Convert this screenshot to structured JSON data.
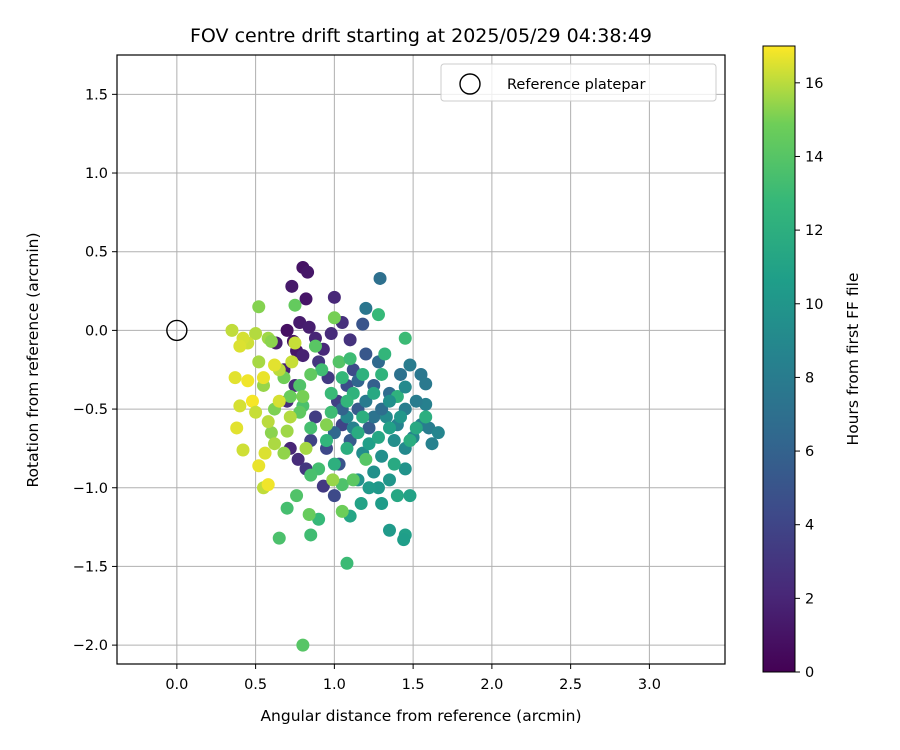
{
  "chart_data": {
    "type": "scatter",
    "title": "FOV centre drift starting at 2025/05/29 04:38:49",
    "xlabel": "Angular distance from reference (arcmin)",
    "ylabel": "Rotation from reference (arcmin)",
    "xlim": [
      -0.38,
      3.48
    ],
    "ylim": [
      -2.12,
      1.75
    ],
    "xticks": [
      0.0,
      0.5,
      1.0,
      1.5,
      2.0,
      2.5,
      3.0
    ],
    "yticks": [
      -2.0,
      -1.5,
      -1.0,
      -0.5,
      0.0,
      0.5,
      1.0,
      1.5
    ],
    "xtick_labels": [
      "0.0",
      "0.5",
      "1.0",
      "1.5",
      "2.0",
      "2.5",
      "3.0"
    ],
    "ytick_labels": [
      "−2.0",
      "−1.5",
      "−1.0",
      "−0.5",
      "0.0",
      "0.5",
      "1.0",
      "1.5"
    ],
    "grid": true,
    "legend": {
      "placement": "top-right",
      "entries": [
        "Reference platepar"
      ]
    },
    "reference_point": {
      "x": 0.0,
      "y": 0.0,
      "label": "Reference platepar"
    },
    "colorbar": {
      "label": "Hours from first FF file",
      "range": [
        0,
        17
      ],
      "ticks": [
        0,
        2,
        4,
        6,
        8,
        10,
        12,
        14,
        16
      ],
      "tick_labels": [
        "0",
        "2",
        "4",
        "6",
        "8",
        "10",
        "12",
        "14",
        "16"
      ],
      "colormap": "viridis"
    },
    "points": [
      {
        "x": 0.8,
        "y": 0.4,
        "h": 1.0
      },
      {
        "x": 0.83,
        "y": 0.37,
        "h": 1.2
      },
      {
        "x": 0.73,
        "y": 0.28,
        "h": 1.3
      },
      {
        "x": 0.82,
        "y": 0.2,
        "h": 1.1
      },
      {
        "x": 0.7,
        "y": 0.0,
        "h": 0.8
      },
      {
        "x": 0.78,
        "y": 0.05,
        "h": 1.4
      },
      {
        "x": 0.84,
        "y": 0.02,
        "h": 1.6
      },
      {
        "x": 0.74,
        "y": -0.07,
        "h": 0.9
      },
      {
        "x": 0.76,
        "y": -0.13,
        "h": 1.2
      },
      {
        "x": 0.8,
        "y": -0.16,
        "h": 1.8
      },
      {
        "x": 0.63,
        "y": -0.08,
        "h": 1.5
      },
      {
        "x": 0.88,
        "y": -0.05,
        "h": 2.0
      },
      {
        "x": 0.93,
        "y": -0.12,
        "h": 2.2
      },
      {
        "x": 0.98,
        "y": -0.02,
        "h": 2.4
      },
      {
        "x": 1.0,
        "y": 0.21,
        "h": 2.1
      },
      {
        "x": 1.05,
        "y": 0.05,
        "h": 2.6
      },
      {
        "x": 1.1,
        "y": -0.06,
        "h": 2.8
      },
      {
        "x": 0.68,
        "y": -0.25,
        "h": 1.7
      },
      {
        "x": 0.75,
        "y": -0.35,
        "h": 2.3
      },
      {
        "x": 0.7,
        "y": -0.45,
        "h": 2.5
      },
      {
        "x": 0.77,
        "y": -0.82,
        "h": 2.4
      },
      {
        "x": 0.72,
        "y": -0.75,
        "h": 2.0
      },
      {
        "x": 0.93,
        "y": -0.99,
        "h": 3.2
      },
      {
        "x": 0.82,
        "y": -0.88,
        "h": 3.0
      },
      {
        "x": 0.9,
        "y": -0.2,
        "h": 3.0
      },
      {
        "x": 0.96,
        "y": -0.3,
        "h": 3.3
      },
      {
        "x": 0.88,
        "y": -0.55,
        "h": 3.5
      },
      {
        "x": 1.02,
        "y": -0.45,
        "h": 3.6
      },
      {
        "x": 0.85,
        "y": -0.7,
        "h": 3.8
      },
      {
        "x": 1.05,
        "y": -0.6,
        "h": 4.0
      },
      {
        "x": 0.95,
        "y": -0.75,
        "h": 4.2
      },
      {
        "x": 1.0,
        "y": -1.05,
        "h": 4.3
      },
      {
        "x": 1.12,
        "y": -0.25,
        "h": 4.4
      },
      {
        "x": 1.08,
        "y": -0.35,
        "h": 4.5
      },
      {
        "x": 1.18,
        "y": 0.04,
        "h": 5.0
      },
      {
        "x": 1.2,
        "y": -0.15,
        "h": 5.2
      },
      {
        "x": 1.15,
        "y": -0.5,
        "h": 5.4
      },
      {
        "x": 1.22,
        "y": -0.62,
        "h": 5.6
      },
      {
        "x": 1.25,
        "y": -0.35,
        "h": 5.8
      },
      {
        "x": 1.1,
        "y": -0.7,
        "h": 5.5
      },
      {
        "x": 1.03,
        "y": -0.85,
        "h": 5.0
      },
      {
        "x": 1.29,
        "y": 0.33,
        "h": 7.0
      },
      {
        "x": 1.2,
        "y": 0.14,
        "h": 7.5
      },
      {
        "x": 1.28,
        "y": -0.2,
        "h": 6.5
      },
      {
        "x": 1.35,
        "y": -0.4,
        "h": 6.8
      },
      {
        "x": 1.42,
        "y": -0.28,
        "h": 7.2
      },
      {
        "x": 1.55,
        "y": -0.28,
        "h": 7.6
      },
      {
        "x": 1.58,
        "y": -0.34,
        "h": 7.8
      },
      {
        "x": 1.48,
        "y": -0.22,
        "h": 8.0
      },
      {
        "x": 1.45,
        "y": -0.5,
        "h": 8.2
      },
      {
        "x": 1.58,
        "y": -0.47,
        "h": 8.3
      },
      {
        "x": 1.52,
        "y": -0.45,
        "h": 8.0
      },
      {
        "x": 1.55,
        "y": -0.6,
        "h": 8.5
      },
      {
        "x": 1.6,
        "y": -0.62,
        "h": 8.1
      },
      {
        "x": 1.62,
        "y": -0.72,
        "h": 8.4
      },
      {
        "x": 1.66,
        "y": -0.65,
        "h": 8.7
      },
      {
        "x": 1.5,
        "y": -0.68,
        "h": 8.8
      },
      {
        "x": 1.4,
        "y": -0.6,
        "h": 8.6
      },
      {
        "x": 1.45,
        "y": -0.75,
        "h": 9.0
      },
      {
        "x": 1.33,
        "y": -0.55,
        "h": 9.2
      },
      {
        "x": 1.38,
        "y": -0.7,
        "h": 9.4
      },
      {
        "x": 1.3,
        "y": -0.8,
        "h": 9.5
      },
      {
        "x": 1.25,
        "y": -0.9,
        "h": 9.6
      },
      {
        "x": 1.45,
        "y": -0.88,
        "h": 9.8
      },
      {
        "x": 1.35,
        "y": -0.95,
        "h": 10.0
      },
      {
        "x": 1.28,
        "y": -1.0,
        "h": 10.2
      },
      {
        "x": 1.22,
        "y": -1.0,
        "h": 10.4
      },
      {
        "x": 1.3,
        "y": -1.1,
        "h": 10.5
      },
      {
        "x": 1.45,
        "y": -1.3,
        "h": 10.8
      },
      {
        "x": 1.44,
        "y": -1.33,
        "h": 10.6
      },
      {
        "x": 1.35,
        "y": -1.27,
        "h": 10.3
      },
      {
        "x": 1.15,
        "y": -0.95,
        "h": 9.7
      },
      {
        "x": 1.18,
        "y": -0.78,
        "h": 9.3
      },
      {
        "x": 1.08,
        "y": -0.55,
        "h": 8.9
      },
      {
        "x": 1.12,
        "y": -0.62,
        "h": 8.4
      },
      {
        "x": 1.2,
        "y": -0.45,
        "h": 7.9
      },
      {
        "x": 1.25,
        "y": -0.55,
        "h": 7.3
      },
      {
        "x": 1.3,
        "y": -0.5,
        "h": 6.9
      },
      {
        "x": 1.15,
        "y": -0.32,
        "h": 6.2
      },
      {
        "x": 1.05,
        "y": -0.5,
        "h": 6.0
      },
      {
        "x": 1.0,
        "y": -0.65,
        "h": 6.4
      },
      {
        "x": 1.17,
        "y": -1.1,
        "h": 11.0
      },
      {
        "x": 1.1,
        "y": -1.18,
        "h": 11.2
      },
      {
        "x": 1.4,
        "y": -1.05,
        "h": 11.4
      },
      {
        "x": 1.48,
        "y": -1.05,
        "h": 11.0
      },
      {
        "x": 1.38,
        "y": -0.85,
        "h": 11.6
      },
      {
        "x": 1.48,
        "y": -0.7,
        "h": 11.8
      },
      {
        "x": 1.58,
        "y": -0.55,
        "h": 12.0
      },
      {
        "x": 1.52,
        "y": -0.62,
        "h": 11.5
      },
      {
        "x": 1.4,
        "y": -0.42,
        "h": 12.2
      },
      {
        "x": 1.3,
        "y": -0.28,
        "h": 12.4
      },
      {
        "x": 1.32,
        "y": -0.15,
        "h": 12.6
      },
      {
        "x": 1.28,
        "y": 0.1,
        "h": 12.8
      },
      {
        "x": 1.45,
        "y": -0.05,
        "h": 13.0
      },
      {
        "x": 1.05,
        "y": -0.3,
        "h": 12.7
      },
      {
        "x": 0.98,
        "y": -0.4,
        "h": 12.9
      },
      {
        "x": 0.92,
        "y": -0.25,
        "h": 13.2
      },
      {
        "x": 1.12,
        "y": -0.4,
        "h": 12.3
      },
      {
        "x": 0.95,
        "y": -0.7,
        "h": 12.5
      },
      {
        "x": 1.0,
        "y": -0.85,
        "h": 12.1
      },
      {
        "x": 1.08,
        "y": -0.75,
        "h": 11.9
      },
      {
        "x": 1.15,
        "y": -0.65,
        "h": 11.7
      },
      {
        "x": 0.85,
        "y": -0.62,
        "h": 13.4
      },
      {
        "x": 0.8,
        "y": -0.48,
        "h": 13.6
      },
      {
        "x": 0.78,
        "y": -0.35,
        "h": 13.8
      },
      {
        "x": 0.9,
        "y": -0.88,
        "h": 13.3
      },
      {
        "x": 0.85,
        "y": -0.92,
        "h": 13.5
      },
      {
        "x": 1.05,
        "y": -0.98,
        "h": 13.7
      },
      {
        "x": 0.9,
        "y": -1.2,
        "h": 12.8
      },
      {
        "x": 1.08,
        "y": -1.48,
        "h": 13.0
      },
      {
        "x": 0.85,
        "y": -1.3,
        "h": 13.2
      },
      {
        "x": 0.7,
        "y": -1.13,
        "h": 13.4
      },
      {
        "x": 0.65,
        "y": -1.32,
        "h": 13.6
      },
      {
        "x": 0.76,
        "y": -1.05,
        "h": 13.8
      },
      {
        "x": 0.84,
        "y": -1.17,
        "h": 14.6
      },
      {
        "x": 1.05,
        "y": -1.15,
        "h": 14.8
      },
      {
        "x": 1.12,
        "y": -0.95,
        "h": 14.2
      },
      {
        "x": 1.2,
        "y": -0.82,
        "h": 14.0
      },
      {
        "x": 1.0,
        "y": 0.08,
        "h": 15.0
      },
      {
        "x": 0.75,
        "y": 0.16,
        "h": 14.5
      },
      {
        "x": 0.78,
        "y": -0.52,
        "h": 14.3
      },
      {
        "x": 0.72,
        "y": -0.42,
        "h": 14.7
      },
      {
        "x": 0.68,
        "y": -0.3,
        "h": 14.9
      },
      {
        "x": 0.62,
        "y": -0.5,
        "h": 15.1
      },
      {
        "x": 0.6,
        "y": -0.65,
        "h": 15.3
      },
      {
        "x": 0.55,
        "y": -0.35,
        "h": 15.5
      },
      {
        "x": 0.52,
        "y": -0.2,
        "h": 15.7
      },
      {
        "x": 0.5,
        "y": -0.02,
        "h": 15.9
      },
      {
        "x": 0.52,
        "y": 0.15,
        "h": 15.2
      },
      {
        "x": 0.58,
        "y": -0.05,
        "h": 15.6
      },
      {
        "x": 0.65,
        "y": -0.25,
        "h": 16.0
      },
      {
        "x": 0.73,
        "y": -0.2,
        "h": 16.2
      },
      {
        "x": 0.45,
        "y": -0.08,
        "h": 16.3
      },
      {
        "x": 0.42,
        "y": -0.05,
        "h": 16.4
      },
      {
        "x": 0.4,
        "y": -0.1,
        "h": 16.5
      },
      {
        "x": 0.35,
        "y": 0.0,
        "h": 16.1
      },
      {
        "x": 0.37,
        "y": -0.3,
        "h": 16.6
      },
      {
        "x": 0.45,
        "y": -0.32,
        "h": 16.8
      },
      {
        "x": 0.55,
        "y": -0.3,
        "h": 16.7
      },
      {
        "x": 0.48,
        "y": -0.45,
        "h": 16.9
      },
      {
        "x": 0.4,
        "y": -0.48,
        "h": 16.4
      },
      {
        "x": 0.38,
        "y": -0.62,
        "h": 16.6
      },
      {
        "x": 0.5,
        "y": -0.52,
        "h": 16.2
      },
      {
        "x": 0.58,
        "y": -0.58,
        "h": 16.0
      },
      {
        "x": 0.62,
        "y": -0.72,
        "h": 15.8
      },
      {
        "x": 0.56,
        "y": -0.78,
        "h": 16.5
      },
      {
        "x": 0.52,
        "y": -0.86,
        "h": 16.7
      },
      {
        "x": 0.42,
        "y": -0.76,
        "h": 16.3
      },
      {
        "x": 0.55,
        "y": -1.0,
        "h": 16.1
      },
      {
        "x": 0.58,
        "y": -0.98,
        "h": 16.8
      },
      {
        "x": 0.68,
        "y": -0.78,
        "h": 15.4
      },
      {
        "x": 0.7,
        "y": -0.64,
        "h": 15.6
      },
      {
        "x": 0.8,
        "y": -0.42,
        "h": 15.0
      },
      {
        "x": 0.85,
        "y": -0.28,
        "h": 14.4
      },
      {
        "x": 0.88,
        "y": -0.1,
        "h": 14.1
      },
      {
        "x": 0.95,
        "y": -0.6,
        "h": 15.2
      },
      {
        "x": 0.99,
        "y": -0.95,
        "h": 15.5
      },
      {
        "x": 0.82,
        "y": -0.75,
        "h": 15.7
      },
      {
        "x": 0.8,
        "y": -2.0,
        "h": 14.0
      },
      {
        "x": 0.65,
        "y": -0.45,
        "h": 16.4
      },
      {
        "x": 0.72,
        "y": -0.55,
        "h": 15.9
      },
      {
        "x": 0.62,
        "y": -0.22,
        "h": 16.6
      },
      {
        "x": 0.6,
        "y": -0.07,
        "h": 15.3
      },
      {
        "x": 0.75,
        "y": -0.08,
        "h": 16.2
      },
      {
        "x": 1.03,
        "y": -0.2,
        "h": 13.9
      },
      {
        "x": 1.1,
        "y": -0.18,
        "h": 13.1
      },
      {
        "x": 1.18,
        "y": -0.28,
        "h": 12.2
      },
      {
        "x": 1.25,
        "y": -0.4,
        "h": 11.5
      },
      {
        "x": 1.35,
        "y": -0.62,
        "h": 10.9
      },
      {
        "x": 1.42,
        "y": -0.55,
        "h": 10.1
      },
      {
        "x": 1.35,
        "y": -0.45,
        "h": 9.6
      },
      {
        "x": 1.45,
        "y": -0.36,
        "h": 9.1
      },
      {
        "x": 1.22,
        "y": -0.72,
        "h": 10.7
      },
      {
        "x": 1.28,
        "y": -0.68,
        "h": 11.3
      },
      {
        "x": 1.18,
        "y": -0.55,
        "h": 12.0
      },
      {
        "x": 1.08,
        "y": -0.45,
        "h": 12.6
      },
      {
        "x": 0.98,
        "y": -0.52,
        "h": 13.1
      }
    ]
  }
}
